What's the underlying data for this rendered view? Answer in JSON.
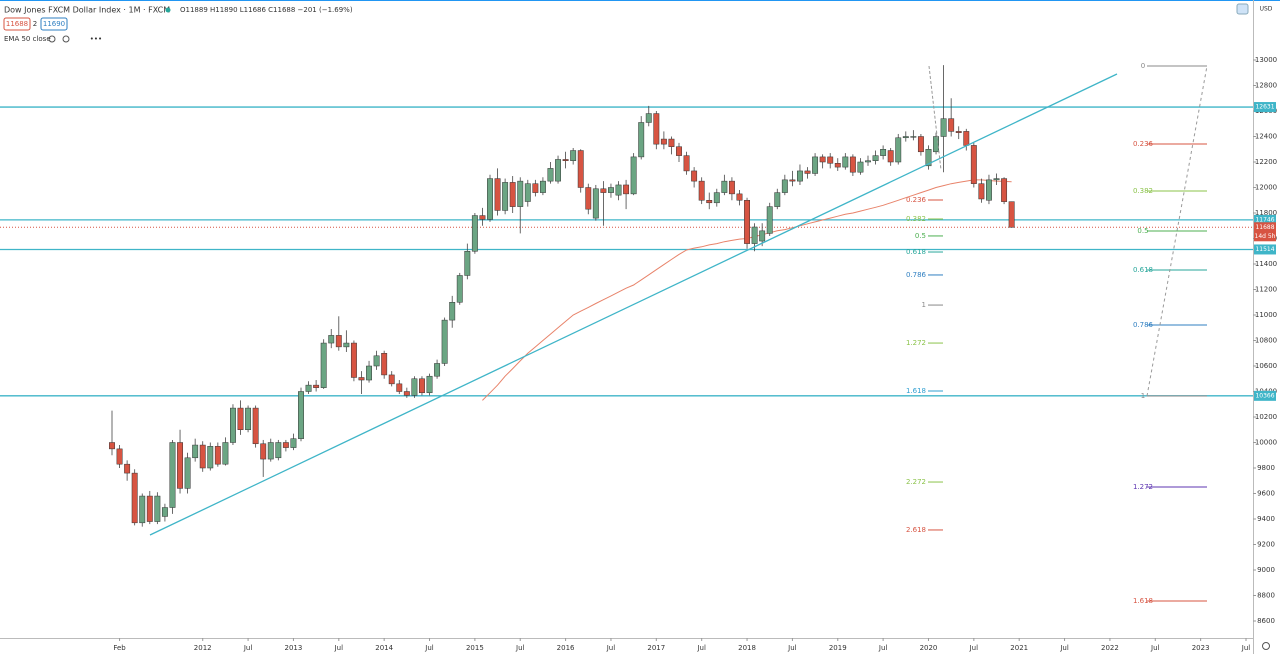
{
  "header": {
    "symbol": "Dow Jones FXCM Dollar Index · 1M · FXCM",
    "ohlc": "O11889 H11890 L11686 C11688 −201 (−1.69%)",
    "bid": "11688",
    "spread": "2",
    "ask": "11690",
    "indicator": "EMA 50 close",
    "currency": "USD"
  },
  "chart_data": {
    "type": "candlestick",
    "title": "Dow Jones FXCM Dollar Index",
    "x": [
      "2011-01",
      "2011-02",
      "2011-03",
      "2011-04",
      "2011-05",
      "2011-06",
      "2011-07",
      "2011-08",
      "2011-09",
      "2011-10",
      "2011-11",
      "2011-12",
      "2012-01",
      "2012-02",
      "2012-03",
      "2012-04",
      "2012-05",
      "2012-06",
      "2012-07",
      "2012-08",
      "2012-09",
      "2012-10",
      "2012-11",
      "2012-12",
      "2013-01",
      "2013-02",
      "2013-03",
      "2013-04",
      "2013-05",
      "2013-06",
      "2013-07",
      "2013-08",
      "2013-09",
      "2013-10",
      "2013-11",
      "2013-12",
      "2014-01",
      "2014-02",
      "2014-03",
      "2014-04",
      "2014-05",
      "2014-06",
      "2014-07",
      "2014-08",
      "2014-09",
      "2014-10",
      "2014-11",
      "2014-12",
      "2015-01",
      "2015-02",
      "2015-03",
      "2015-04",
      "2015-05",
      "2015-06",
      "2015-07",
      "2015-08",
      "2015-09",
      "2015-10",
      "2015-11",
      "2015-12",
      "2016-01",
      "2016-02",
      "2016-03",
      "2016-04",
      "2016-05",
      "2016-06",
      "2016-07",
      "2016-08",
      "2016-09",
      "2016-10",
      "2016-11",
      "2016-12",
      "2017-01",
      "2017-02",
      "2017-03",
      "2017-04",
      "2017-05",
      "2017-06",
      "2017-07",
      "2017-08",
      "2017-09",
      "2017-10",
      "2017-11",
      "2017-12",
      "2018-01",
      "2018-02",
      "2018-03",
      "2018-04",
      "2018-05",
      "2018-06",
      "2018-07",
      "2018-08",
      "2018-09",
      "2018-10",
      "2018-11",
      "2018-12",
      "2019-01",
      "2019-02",
      "2019-03",
      "2019-04",
      "2019-05",
      "2019-06",
      "2019-07",
      "2019-08",
      "2019-09",
      "2019-10",
      "2019-11",
      "2019-12",
      "2020-01",
      "2020-02",
      "2020-03",
      "2020-04",
      "2020-05",
      "2020-06",
      "2020-07",
      "2020-08",
      "2020-09",
      "2020-10",
      "2020-11",
      "2020-12"
    ],
    "open": [
      10000,
      9950,
      9830,
      9760,
      9370,
      9580,
      9380,
      9420,
      9490,
      10000,
      9640,
      9880,
      9980,
      9800,
      9970,
      9830,
      10000,
      10270,
      10100,
      10270,
      9990,
      9870,
      9880,
      10000,
      9960,
      10030,
      10400,
      10450,
      10430,
      10780,
      10840,
      10750,
      10780,
      10510,
      10490,
      10600,
      10700,
      10530,
      10460,
      10400,
      10370,
      10500,
      10390,
      10520,
      10620,
      10960,
      11100,
      11310,
      11500,
      11780,
      11750,
      12070,
      11820,
      12040,
      11850,
      11890,
      12030,
      11960,
      12050,
      12050,
      12220,
      12210,
      12290,
      12000,
      11760,
      11990,
      11960,
      11940,
      12020,
      11950,
      12240,
      12510,
      12580,
      12380,
      12380,
      12320,
      12250,
      12130,
      12050,
      11900,
      11880,
      11960,
      12050,
      11950,
      11900,
      11560,
      11580,
      11640,
      11850,
      11960,
      12060,
      12050,
      12130,
      12110,
      12240,
      12240,
      12190,
      12160,
      12240,
      12120,
      12200,
      12210,
      12250,
      12290,
      12200,
      12390,
      12400,
      12400,
      12170,
      12280,
      12400,
      12540,
      12440,
      12440,
      12330,
      12030,
      11900,
      12060,
      12070,
      11889
    ],
    "high": [
      10250,
      9980,
      9860,
      9790,
      9600,
      9620,
      9610,
      9520,
      10020,
      10100,
      9920,
      10030,
      10010,
      10000,
      10000,
      10040,
      10300,
      10330,
      10290,
      10290,
      10020,
      10030,
      10020,
      10020,
      10070,
      10430,
      10480,
      10490,
      10810,
      10890,
      10990,
      10880,
      10800,
      10560,
      10640,
      10720,
      10720,
      10560,
      10490,
      10430,
      10520,
      10520,
      10540,
      10650,
      10980,
      11150,
      11330,
      11560,
      11800,
      11840,
      12100,
      12150,
      12070,
      12090,
      12080,
      12060,
      12060,
      12080,
      12200,
      12250,
      12280,
      12310,
      12300,
      12030,
      12020,
      12050,
      12030,
      12050,
      12060,
      12270,
      12560,
      12640,
      12600,
      12440,
      12400,
      12350,
      12280,
      12160,
      12080,
      11960,
      11990,
      12100,
      12080,
      11980,
      11920,
      11720,
      11720,
      11880,
      11990,
      12100,
      12130,
      12180,
      12160,
      12270,
      12260,
      12270,
      12230,
      12270,
      12260,
      12230,
      12250,
      12290,
      12330,
      12310,
      12420,
      12440,
      12450,
      12420,
      12330,
      12430,
      12960,
      12700,
      12480,
      12460,
      12350,
      12070,
      12100,
      12110,
      12080,
      11890
    ],
    "low": [
      9900,
      9800,
      9700,
      9350,
      9340,
      9360,
      9360,
      9380,
      9440,
      9600,
      9600,
      9850,
      9770,
      9780,
      9810,
      9820,
      9980,
      10060,
      10080,
      9960,
      9730,
      9850,
      9860,
      9930,
      9940,
      10010,
      10380,
      10400,
      10420,
      10740,
      10720,
      10710,
      10480,
      10380,
      10470,
      10570,
      10500,
      10440,
      10380,
      10350,
      10350,
      10370,
      10370,
      10500,
      10600,
      10900,
      11080,
      11280,
      11480,
      11700,
      11730,
      11780,
      11790,
      11800,
      11640,
      11850,
      11930,
      11940,
      12030,
      12030,
      12150,
      12180,
      11960,
      11790,
      11740,
      11700,
      11920,
      11900,
      11830,
      11940,
      12220,
      12480,
      12300,
      12300,
      12260,
      12200,
      12100,
      12000,
      11870,
      11830,
      11850,
      11940,
      11900,
      11860,
      11520,
      11500,
      11540,
      11620,
      11830,
      11940,
      12010,
      12020,
      12070,
      12090,
      12150,
      12150,
      12130,
      12140,
      12090,
      12100,
      12170,
      12180,
      12220,
      12170,
      12180,
      12360,
      12370,
      12250,
      12140,
      12260,
      12120,
      12400,
      12380,
      12290,
      12000,
      11880,
      11870,
      12020,
      11870,
      11686
    ],
    "close": [
      9950,
      9830,
      9760,
      9370,
      9580,
      9380,
      9580,
      9490,
      10000,
      9640,
      9880,
      9980,
      9800,
      9970,
      9830,
      10000,
      10270,
      10100,
      10270,
      9990,
      9870,
      10000,
      10000,
      9960,
      10030,
      10400,
      10450,
      10430,
      10780,
      10840,
      10750,
      10780,
      10510,
      10490,
      10600,
      10680,
      10530,
      10460,
      10400,
      10370,
      10500,
      10390,
      10520,
      10620,
      10960,
      11100,
      11310,
      11500,
      11780,
      11750,
      12070,
      11820,
      12040,
      11850,
      12050,
      12030,
      11960,
      12050,
      12150,
      12220,
      12210,
      12290,
      12000,
      11830,
      11990,
      11960,
      12000,
      12020,
      11950,
      12240,
      12510,
      12580,
      12340,
      12340,
      12320,
      12250,
      12130,
      12050,
      11900,
      11880,
      11960,
      12050,
      11950,
      11900,
      11560,
      11690,
      11660,
      11850,
      11960,
      12060,
      12050,
      12130,
      12110,
      12240,
      12200,
      12190,
      12160,
      12240,
      12120,
      12200,
      12210,
      12250,
      12300,
      12200,
      12390,
      12400,
      12400,
      12280,
      12300,
      12400,
      12540,
      12440,
      12430,
      12330,
      12030,
      11910,
      12060,
      12070,
      11889,
      11688
    ],
    "up_color": "#6ba583",
    "down_color": "#d75442",
    "ema": {
      "name": "EMA 50 close",
      "color": "#e8836a",
      "values": [
        null,
        null,
        null,
        null,
        null,
        null,
        null,
        null,
        null,
        null,
        null,
        null,
        null,
        null,
        null,
        null,
        null,
        null,
        null,
        null,
        null,
        null,
        null,
        null,
        null,
        null,
        null,
        null,
        null,
        null,
        null,
        null,
        null,
        null,
        null,
        null,
        null,
        null,
        null,
        null,
        null,
        null,
        null,
        null,
        null,
        null,
        null,
        null,
        null,
        10330,
        10390,
        10450,
        10520,
        10580,
        10640,
        10700,
        10750,
        10800,
        10850,
        10900,
        10950,
        11000,
        11030,
        11060,
        11090,
        11120,
        11150,
        11180,
        11210,
        11235,
        11275,
        11315,
        11355,
        11395,
        11435,
        11475,
        11510,
        11525,
        11535,
        11550,
        11560,
        11575,
        11585,
        11595,
        11600,
        11615,
        11630,
        11645,
        11660,
        11670,
        11685,
        11700,
        11715,
        11730,
        11745,
        11760,
        11775,
        11790,
        11800,
        11815,
        11830,
        11845,
        11860,
        11880,
        11900,
        11920,
        11940,
        11960,
        11980,
        12000,
        12015,
        12030,
        12040,
        12050,
        12060,
        12060,
        12055,
        12050,
        12048,
        12045
      ]
    },
    "ylim": [
      8500,
      13200
    ],
    "yticks": [
      8600,
      8800,
      9000,
      9200,
      9400,
      9600,
      9800,
      10000,
      10200,
      10400,
      10600,
      10800,
      11000,
      11200,
      11400,
      11600,
      11800,
      12000,
      12200,
      12400,
      12600,
      12800,
      13000
    ],
    "xticks": [
      {
        "value": "2011-02",
        "label": "Feb"
      },
      {
        "value": "2012-01",
        "label": "2012"
      },
      {
        "value": "2012-07",
        "label": "Jul"
      },
      {
        "value": "2013-01",
        "label": "2013"
      },
      {
        "value": "2013-07",
        "label": "Jul"
      },
      {
        "value": "2014-01",
        "label": "2014"
      },
      {
        "value": "2014-07",
        "label": "Jul"
      },
      {
        "value": "2015-01",
        "label": "2015"
      },
      {
        "value": "2015-07",
        "label": "Jul"
      },
      {
        "value": "2016-01",
        "label": "2016"
      },
      {
        "value": "2016-07",
        "label": "Jul"
      },
      {
        "value": "2017-01",
        "label": "2017"
      },
      {
        "value": "2017-07",
        "label": "Jul"
      },
      {
        "value": "2018-01",
        "label": "2018"
      },
      {
        "value": "2018-07",
        "label": "Jul"
      },
      {
        "value": "2019-01",
        "label": "2019"
      },
      {
        "value": "2019-07",
        "label": "Jul"
      },
      {
        "value": "2020-01",
        "label": "2020"
      },
      {
        "value": "2020-07",
        "label": "Jul"
      },
      {
        "value": "2021-01",
        "label": "2021"
      },
      {
        "value": "2021-07",
        "label": "Jul"
      },
      {
        "value": "2022-01",
        "label": "2022"
      },
      {
        "value": "2022-07",
        "label": "Jul"
      },
      {
        "value": "2023-01",
        "label": "2023"
      },
      {
        "value": "2023-07",
        "label": "Jul"
      }
    ],
    "hlines": [
      12631,
      11746,
      11514,
      10366
    ],
    "hline_color": "#3fb5c8",
    "last_price": 11688,
    "countdown": "14d 5h",
    "fib_left": [
      {
        "label": "0.236",
        "value": 11902,
        "color": "#d75442"
      },
      {
        "label": "0.382",
        "value": 11753,
        "color": "#8bc34a"
      },
      {
        "label": "0.5",
        "value": 11620,
        "color": "#4caf50"
      },
      {
        "label": "0.618",
        "value": 11494,
        "color": "#26a69a"
      },
      {
        "label": "0.786",
        "value": 11314,
        "color": "#2f7fc1"
      },
      {
        "label": "1",
        "value": 11078,
        "color": "#888888"
      },
      {
        "label": "1.272",
        "value": 10780,
        "color": "#8bc34a"
      },
      {
        "label": "1.618",
        "value": 10404,
        "color": "#2f9fd1"
      },
      {
        "label": "2.272",
        "value": 9690,
        "color": "#8bc34a"
      },
      {
        "label": "2.618",
        "value": 9314,
        "color": "#d75442"
      }
    ],
    "fib_right": [
      {
        "label": "0",
        "value": 12953,
        "color": "#888888"
      },
      {
        "label": "0.236",
        "value": 12341,
        "color": "#d75442"
      },
      {
        "label": "0.382",
        "value": 11973,
        "color": "#8bc34a"
      },
      {
        "label": "0.5",
        "value": 11659,
        "color": "#4caf50"
      },
      {
        "label": "0.618",
        "value": 11353,
        "color": "#26a69a"
      },
      {
        "label": "0.786",
        "value": 10922,
        "color": "#2f7fc1"
      },
      {
        "label": "1",
        "value": 10365,
        "color": "#888888"
      },
      {
        "label": "1.272",
        "value": 9651,
        "color": "#5e35b1"
      },
      {
        "label": "1.618",
        "value": 8757,
        "color": "#d75442"
      }
    ]
  }
}
